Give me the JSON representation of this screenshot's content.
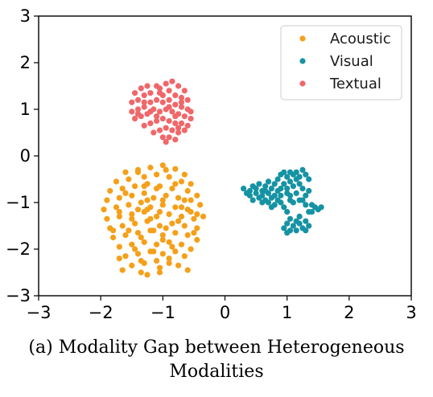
{
  "caption": "(a) Modality Gap between Heterogeneous Modalities",
  "chart_data": {
    "type": "scatter",
    "title": "",
    "xlabel": "",
    "ylabel": "",
    "xlim": [
      -3,
      3
    ],
    "ylim": [
      -3,
      3
    ],
    "xticks": [
      -3,
      -2,
      -1,
      0,
      1,
      2,
      3
    ],
    "yticks": [
      -3,
      -2,
      -1,
      0,
      1,
      2,
      3
    ],
    "xtick_labels": [
      "−3",
      "−2",
      "−1",
      "0",
      "1",
      "2",
      "3"
    ],
    "ytick_labels": [
      "−3",
      "−2",
      "−1",
      "0",
      "1",
      "2",
      "3"
    ],
    "grid": false,
    "legend_position": "top-right",
    "series": [
      {
        "name": "Acoustic",
        "color": "#f5a01a",
        "approx_center": [
          -1.15,
          -1.35
        ],
        "approx_x_range": [
          -1.95,
          -0.35
        ],
        "approx_y_range": [
          -2.55,
          -0.2
        ],
        "points": [
          [
            -1.6,
            -0.35
          ],
          [
            -1.4,
            -0.3
          ],
          [
            -1.2,
            -0.25
          ],
          [
            -1.0,
            -0.2
          ],
          [
            -0.8,
            -0.28
          ],
          [
            -0.65,
            -0.4
          ],
          [
            -1.75,
            -0.55
          ],
          [
            -1.55,
            -0.5
          ],
          [
            -1.3,
            -0.45
          ],
          [
            -1.1,
            -0.4
          ],
          [
            -0.9,
            -0.45
          ],
          [
            -0.7,
            -0.55
          ],
          [
            -0.55,
            -0.6
          ],
          [
            -1.85,
            -0.75
          ],
          [
            -1.65,
            -0.7
          ],
          [
            -1.45,
            -0.65
          ],
          [
            -1.25,
            -0.6
          ],
          [
            -1.05,
            -0.65
          ],
          [
            -0.85,
            -0.7
          ],
          [
            -0.6,
            -0.75
          ],
          [
            -0.45,
            -0.85
          ],
          [
            -1.9,
            -0.95
          ],
          [
            -1.7,
            -0.9
          ],
          [
            -1.5,
            -0.85
          ],
          [
            -1.3,
            -0.8
          ],
          [
            -1.15,
            -0.9
          ],
          [
            -0.95,
            -0.85
          ],
          [
            -0.75,
            -0.9
          ],
          [
            -0.55,
            -0.95
          ],
          [
            -0.4,
            -1.05
          ],
          [
            -1.95,
            -1.15
          ],
          [
            -1.75,
            -1.1
          ],
          [
            -1.55,
            -1.05
          ],
          [
            -1.35,
            -1.0
          ],
          [
            -1.2,
            -1.1
          ],
          [
            -1.0,
            -1.05
          ],
          [
            -0.8,
            -1.1
          ],
          [
            -0.6,
            -1.15
          ],
          [
            -0.45,
            -1.25
          ],
          [
            -1.9,
            -1.35
          ],
          [
            -1.7,
            -1.3
          ],
          [
            -1.5,
            -1.25
          ],
          [
            -1.3,
            -1.2
          ],
          [
            -1.1,
            -1.3
          ],
          [
            -0.9,
            -1.25
          ],
          [
            -0.7,
            -1.3
          ],
          [
            -0.5,
            -1.35
          ],
          [
            -0.35,
            -1.3
          ],
          [
            -1.85,
            -1.55
          ],
          [
            -1.65,
            -1.5
          ],
          [
            -1.45,
            -1.45
          ],
          [
            -1.25,
            -1.4
          ],
          [
            -1.05,
            -1.5
          ],
          [
            -0.85,
            -1.45
          ],
          [
            -0.65,
            -1.5
          ],
          [
            -0.45,
            -1.55
          ],
          [
            -1.8,
            -1.75
          ],
          [
            -1.6,
            -1.7
          ],
          [
            -1.4,
            -1.65
          ],
          [
            -1.2,
            -1.6
          ],
          [
            -1.0,
            -1.7
          ],
          [
            -0.8,
            -1.65
          ],
          [
            -0.6,
            -1.7
          ],
          [
            -0.45,
            -1.8
          ],
          [
            -1.7,
            -1.95
          ],
          [
            -1.5,
            -1.9
          ],
          [
            -1.3,
            -1.85
          ],
          [
            -1.1,
            -1.9
          ],
          [
            -0.9,
            -1.85
          ],
          [
            -0.7,
            -1.9
          ],
          [
            -0.55,
            -2.0
          ],
          [
            -1.6,
            -2.15
          ],
          [
            -1.4,
            -2.1
          ],
          [
            -1.2,
            -2.05
          ],
          [
            -1.0,
            -2.1
          ],
          [
            -0.8,
            -2.05
          ],
          [
            -0.65,
            -2.15
          ],
          [
            -1.5,
            -2.35
          ],
          [
            -1.3,
            -2.3
          ],
          [
            -1.1,
            -2.25
          ],
          [
            -0.9,
            -2.3
          ],
          [
            -0.75,
            -2.35
          ],
          [
            -1.65,
            -2.45
          ],
          [
            -1.35,
            -2.5
          ],
          [
            -1.25,
            -2.55
          ],
          [
            -1.05,
            -2.4
          ],
          [
            -0.6,
            -2.45
          ],
          [
            -1.25,
            -0.95
          ],
          [
            -1.05,
            -1.2
          ],
          [
            -1.15,
            -1.6
          ],
          [
            -1.35,
            -1.75
          ],
          [
            -0.95,
            -1.55
          ],
          [
            -1.2,
            -1.35
          ],
          [
            -1.4,
            -1.15
          ],
          [
            -1.0,
            -0.95
          ],
          [
            -0.85,
            -1.95
          ],
          [
            -1.15,
            -2.05
          ],
          [
            -1.3,
            -0.65
          ],
          [
            -0.8,
            -0.6
          ],
          [
            -1.55,
            -1.6
          ],
          [
            -1.45,
            -2.0
          ],
          [
            -0.7,
            -1.1
          ],
          [
            -0.5,
            -1.65
          ],
          [
            -1.7,
            -1.2
          ],
          [
            -1.1,
            -0.7
          ],
          [
            -0.9,
            -2.2
          ],
          [
            -1.35,
            -2.25
          ],
          [
            -1.6,
            -0.8
          ],
          [
            -0.55,
            -1.2
          ],
          [
            -1.0,
            -1.8
          ],
          [
            -1.25,
            -1.15
          ],
          [
            -1.8,
            -1.6
          ],
          [
            -0.75,
            -1.4
          ],
          [
            -1.5,
            -1.35
          ],
          [
            -1.05,
            -2.5
          ],
          [
            -0.65,
            -0.95
          ],
          [
            -1.4,
            -0.35
          ],
          [
            -0.95,
            -0.3
          ],
          [
            -1.7,
            -2.2
          ]
        ]
      },
      {
        "name": "Visual",
        "color": "#1593a3",
        "approx_center": [
          0.95,
          -0.95
        ],
        "approx_x_range": [
          0.3,
          1.6
        ],
        "approx_y_range": [
          -1.65,
          -0.3
        ],
        "points": [
          [
            0.3,
            -0.7
          ],
          [
            0.35,
            -0.8
          ],
          [
            0.4,
            -0.75
          ],
          [
            0.45,
            -0.65
          ],
          [
            0.5,
            -0.8
          ],
          [
            0.5,
            -0.7
          ],
          [
            0.55,
            -0.9
          ],
          [
            0.6,
            -0.75
          ],
          [
            0.6,
            -0.85
          ],
          [
            0.65,
            -0.65
          ],
          [
            0.65,
            -0.95
          ],
          [
            0.7,
            -0.8
          ],
          [
            0.7,
            -1.0
          ],
          [
            0.75,
            -0.7
          ],
          [
            0.75,
            -0.9
          ],
          [
            0.8,
            -0.6
          ],
          [
            0.8,
            -1.05
          ],
          [
            0.85,
            -0.75
          ],
          [
            0.85,
            -0.5
          ],
          [
            0.9,
            -0.4
          ],
          [
            0.9,
            -0.85
          ],
          [
            0.95,
            -0.35
          ],
          [
            0.95,
            -0.6
          ],
          [
            0.95,
            -1.1
          ],
          [
            1.0,
            -0.45
          ],
          [
            1.0,
            -0.7
          ],
          [
            1.0,
            -1.2
          ],
          [
            1.05,
            -0.55
          ],
          [
            1.05,
            -0.85
          ],
          [
            1.1,
            -0.4
          ],
          [
            1.1,
            -0.65
          ],
          [
            1.1,
            -1.0
          ],
          [
            1.15,
            -0.5
          ],
          [
            1.15,
            -0.8
          ],
          [
            1.2,
            -0.6
          ],
          [
            1.2,
            -0.95
          ],
          [
            1.25,
            -0.3
          ],
          [
            1.25,
            -0.7
          ],
          [
            1.3,
            -0.4
          ],
          [
            1.3,
            -0.85
          ],
          [
            1.35,
            -0.5
          ],
          [
            1.35,
            -0.75
          ],
          [
            1.3,
            -1.05
          ],
          [
            1.25,
            -0.95
          ],
          [
            1.4,
            -1.05
          ],
          [
            1.45,
            -1.1
          ],
          [
            1.5,
            -1.15
          ],
          [
            1.55,
            -1.1
          ],
          [
            1.35,
            -1.2
          ],
          [
            1.4,
            -1.2
          ],
          [
            0.95,
            -1.55
          ],
          [
            1.0,
            -1.45
          ],
          [
            1.05,
            -1.6
          ],
          [
            1.1,
            -1.5
          ],
          [
            1.15,
            -1.4
          ],
          [
            1.15,
            -1.6
          ],
          [
            1.2,
            -1.45
          ],
          [
            1.25,
            -1.55
          ],
          [
            1.3,
            -1.4
          ],
          [
            1.3,
            -1.6
          ],
          [
            1.35,
            -1.5
          ],
          [
            1.05,
            -1.35
          ],
          [
            1.0,
            -1.65
          ],
          [
            1.2,
            -1.3
          ],
          [
            0.55,
            -0.6
          ],
          [
            0.7,
            -0.55
          ],
          [
            0.85,
            -0.95
          ],
          [
            0.8,
            -0.85
          ],
          [
            0.9,
            -1.0
          ],
          [
            1.05,
            -0.95
          ],
          [
            0.75,
            -1.1
          ],
          [
            0.65,
            -0.75
          ],
          [
            0.4,
            -0.85
          ],
          [
            0.45,
            -0.95
          ],
          [
            1.15,
            -0.35
          ],
          [
            1.2,
            -0.45
          ],
          [
            1.05,
            -0.35
          ],
          [
            0.9,
            -0.7
          ],
          [
            1.0,
            -0.8
          ],
          [
            0.6,
            -1.0
          ]
        ]
      },
      {
        "name": "Textual",
        "color": "#f0676a",
        "approx_center": [
          -1.0,
          0.95
        ],
        "approx_x_range": [
          -1.5,
          -0.5
        ],
        "approx_y_range": [
          0.3,
          1.6
        ],
        "points": [
          [
            -1.45,
            1.35
          ],
          [
            -1.35,
            1.45
          ],
          [
            -1.25,
            1.5
          ],
          [
            -1.1,
            1.5
          ],
          [
            -0.95,
            1.55
          ],
          [
            -0.85,
            1.6
          ],
          [
            -0.75,
            1.5
          ],
          [
            -0.65,
            1.4
          ],
          [
            -1.5,
            1.15
          ],
          [
            -1.4,
            1.2
          ],
          [
            -1.3,
            1.3
          ],
          [
            -1.2,
            1.35
          ],
          [
            -1.05,
            1.35
          ],
          [
            -0.9,
            1.4
          ],
          [
            -0.8,
            1.3
          ],
          [
            -0.7,
            1.25
          ],
          [
            -0.6,
            1.2
          ],
          [
            -1.5,
            0.95
          ],
          [
            -1.4,
            1.0
          ],
          [
            -1.3,
            1.05
          ],
          [
            -1.2,
            1.15
          ],
          [
            -1.1,
            1.2
          ],
          [
            -1.0,
            1.15
          ],
          [
            -0.9,
            1.2
          ],
          [
            -0.8,
            1.1
          ],
          [
            -0.7,
            1.05
          ],
          [
            -0.6,
            1.0
          ],
          [
            -0.55,
            0.95
          ],
          [
            -1.45,
            0.8
          ],
          [
            -1.35,
            0.85
          ],
          [
            -1.25,
            0.9
          ],
          [
            -1.15,
            1.0
          ],
          [
            -1.05,
            0.95
          ],
          [
            -0.95,
            1.0
          ],
          [
            -0.85,
            0.95
          ],
          [
            -0.75,
            0.9
          ],
          [
            -0.65,
            0.85
          ],
          [
            -0.55,
            0.8
          ],
          [
            -1.3,
            0.65
          ],
          [
            -1.2,
            0.7
          ],
          [
            -1.1,
            0.75
          ],
          [
            -1.0,
            0.8
          ],
          [
            -0.9,
            0.75
          ],
          [
            -0.8,
            0.7
          ],
          [
            -0.7,
            0.7
          ],
          [
            -0.6,
            0.65
          ],
          [
            -1.15,
            0.5
          ],
          [
            -1.05,
            0.55
          ],
          [
            -0.95,
            0.6
          ],
          [
            -0.85,
            0.55
          ],
          [
            -0.75,
            0.5
          ],
          [
            -0.65,
            0.55
          ],
          [
            -1.0,
            0.4
          ],
          [
            -0.9,
            0.4
          ],
          [
            -0.8,
            0.35
          ],
          [
            -0.95,
            0.3
          ],
          [
            -1.3,
            1.15
          ],
          [
            -1.0,
            1.3
          ],
          [
            -0.8,
            0.85
          ],
          [
            -1.1,
            0.85
          ],
          [
            -0.7,
            1.15
          ],
          [
            -0.9,
            1.05
          ],
          [
            -1.2,
            0.95
          ],
          [
            -1.05,
            1.45
          ],
          [
            -0.75,
            0.6
          ],
          [
            -1.4,
            0.9
          ]
        ]
      }
    ]
  }
}
